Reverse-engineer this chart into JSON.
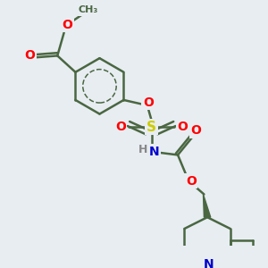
{
  "background_color": "#e8edf2",
  "bond_color": "#4a6741",
  "bond_width": 1.8,
  "atom_colors": {
    "O": "#ff0000",
    "S": "#cccc00",
    "N": "#0000cc",
    "C": "#4a6741",
    "H": "#888888"
  }
}
